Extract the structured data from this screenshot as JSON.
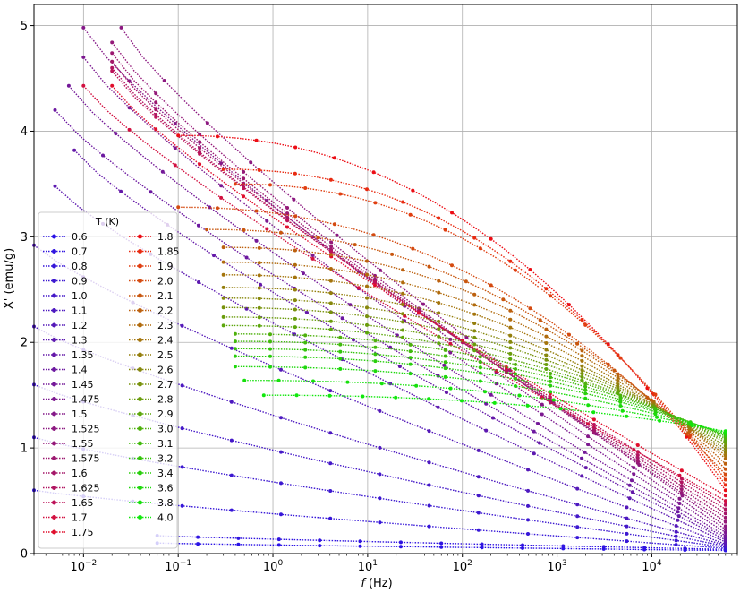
{
  "chart_data": {
    "type": "line",
    "xscale": "log",
    "xlabel_italic": "f",
    "xlabel_unit": "(Hz)",
    "ylabel": "X' (emu/g)",
    "xlim": [
      0.003,
      80000
    ],
    "ylim": [
      0,
      5.2
    ],
    "grid": true,
    "legend": {
      "title": "T (K)",
      "placement": "lower-left",
      "columns": 2
    },
    "x_ticks": [
      {
        "value": 0.01,
        "base": "10",
        "exp": "−2"
      },
      {
        "value": 0.1,
        "base": "10",
        "exp": "−1"
      },
      {
        "value": 1,
        "base": "10",
        "exp": "0"
      },
      {
        "value": 10,
        "base": "10",
        "exp": "1"
      },
      {
        "value": 100,
        "base": "10",
        "exp": "2"
      },
      {
        "value": 1000,
        "base": "10",
        "exp": "3"
      },
      {
        "value": 10000,
        "base": "10",
        "exp": "4"
      }
    ],
    "y_ticks": [
      "0",
      "1",
      "2",
      "3",
      "4",
      "5"
    ],
    "series": [
      {
        "name": "0.6",
        "color": "#2a12e6",
        "f_min": 0.06,
        "x_start": 0.06,
        "y_start": 0.1,
        "y_end": 0.03
      },
      {
        "name": "0.7",
        "color": "#3014e0",
        "f_min": 0.06,
        "x_start": 0.06,
        "y_start": 0.17,
        "y_end": 0.04
      },
      {
        "name": "0.8",
        "color": "#3616d8",
        "f_min": 0.003,
        "x_start": 0.003,
        "y_start": 0.6,
        "y_end": 0.05
      },
      {
        "name": "0.9",
        "color": "#3c18d0",
        "f_min": 0.003,
        "x_start": 0.003,
        "y_start": 1.1,
        "y_end": 0.06
      },
      {
        "name": "1.0",
        "color": "#4418c8",
        "f_min": 0.003,
        "x_start": 0.003,
        "y_start": 1.6,
        "y_end": 0.07
      },
      {
        "name": "1.1",
        "color": "#4c18c0",
        "f_min": 0.003,
        "x_start": 0.003,
        "y_start": 2.15,
        "y_end": 0.08
      },
      {
        "name": "1.2",
        "color": "#5418b8",
        "f_min": 0.003,
        "x_start": 0.003,
        "y_start": 2.92,
        "y_end": 0.09
      },
      {
        "name": "1.3",
        "color": "#5c18b0",
        "f_min": 0.005,
        "x_start": 0.005,
        "y_start": 3.48,
        "y_end": 0.11
      },
      {
        "name": "1.35",
        "color": "#6418a8",
        "f_min": 0.008,
        "x_start": 0.008,
        "y_start": 3.82,
        "y_end": 0.13
      },
      {
        "name": "1.4",
        "color": "#6c18a0",
        "f_min": 0.005,
        "x_start": 0.005,
        "y_start": 4.2,
        "y_end": 0.15
      },
      {
        "name": "1.45",
        "color": "#741898",
        "f_min": 0.007,
        "x_start": 0.007,
        "y_start": 4.43,
        "y_end": 0.17
      },
      {
        "name": "1.475",
        "color": "#7c1890",
        "f_min": 0.01,
        "x_start": 0.01,
        "y_start": 4.7,
        "y_end": 0.2
      },
      {
        "name": "1.5",
        "color": "#841888",
        "f_min": 0.01,
        "x_start": 0.01,
        "y_start": 4.98,
        "y_end": 0.23
      },
      {
        "name": "1.525",
        "color": "#8c1880",
        "f_min": 0.025,
        "x_start": 0.025,
        "y_start": 4.98,
        "y_end": 0.26
      },
      {
        "name": "1.55",
        "color": "#941878",
        "f_min": 0.02,
        "x_start": 0.02,
        "y_start": 4.84,
        "y_end": 0.3
      },
      {
        "name": "1.575",
        "color": "#9c1870",
        "f_min": 0.02,
        "x_start": 0.02,
        "y_start": 4.74,
        "y_end": 0.34
      },
      {
        "name": "1.6",
        "color": "#a41668",
        "f_min": 0.02,
        "x_start": 0.02,
        "y_start": 4.66,
        "y_end": 0.38
      },
      {
        "name": "1.625",
        "color": "#b01460",
        "f_min": 0.02,
        "x_start": 0.02,
        "y_start": 4.6,
        "y_end": 0.42
      },
      {
        "name": "1.65",
        "color": "#bc1258",
        "f_min": 0.02,
        "x_start": 0.02,
        "y_start": 4.57,
        "y_end": 0.46
      },
      {
        "name": "1.7",
        "color": "#d21040",
        "f_min": 0.01,
        "x_start": 0.01,
        "y_start": 4.43,
        "y_end": 0.5
      },
      {
        "name": "1.75",
        "color": "#e00e2c",
        "f_min": 0.02,
        "x_start": 0.02,
        "y_start": 4.43,
        "y_end": 0.55
      },
      {
        "name": "1.8",
        "color": "#ec0c14",
        "f_min": 0.1,
        "x_start": 0.1,
        "y_start": 3.96,
        "y_end": 0.6
      },
      {
        "name": "1.85",
        "color": "#e82a10",
        "f_min": 0.3,
        "x_start": 0.3,
        "y_start": 3.64,
        "y_end": 0.65
      },
      {
        "name": "1.9",
        "color": "#e03e10",
        "f_min": 0.4,
        "x_start": 0.4,
        "y_start": 3.5,
        "y_end": 0.7
      },
      {
        "name": "2.0",
        "color": "#d44a10",
        "f_min": 0.1,
        "x_start": 0.1,
        "y_start": 3.28,
        "y_end": 0.75
      },
      {
        "name": "2.1",
        "color": "#c8560e",
        "f_min": 0.2,
        "x_start": 0.2,
        "y_start": 3.07,
        "y_end": 0.8
      },
      {
        "name": "2.2",
        "color": "#bc600e",
        "f_min": 0.3,
        "x_start": 0.3,
        "y_start": 2.9,
        "y_end": 0.85
      },
      {
        "name": "2.3",
        "color": "#b06a0c",
        "f_min": 0.3,
        "x_start": 0.3,
        "y_start": 2.76,
        "y_end": 0.9
      },
      {
        "name": "2.4",
        "color": "#a4740c",
        "f_min": 0.3,
        "x_start": 0.3,
        "y_start": 2.64,
        "y_end": 0.93
      },
      {
        "name": "2.5",
        "color": "#947e0c",
        "f_min": 0.3,
        "x_start": 0.3,
        "y_start": 2.52,
        "y_end": 0.96
      },
      {
        "name": "2.6",
        "color": "#86880c",
        "f_min": 0.3,
        "x_start": 0.3,
        "y_start": 2.42,
        "y_end": 0.99
      },
      {
        "name": "2.7",
        "color": "#78920c",
        "f_min": 0.3,
        "x_start": 0.3,
        "y_start": 2.33,
        "y_end": 1.02
      },
      {
        "name": "2.8",
        "color": "#6a9c0c",
        "f_min": 0.3,
        "x_start": 0.3,
        "y_start": 2.24,
        "y_end": 1.05
      },
      {
        "name": "2.9",
        "color": "#5ca60c",
        "f_min": 0.3,
        "x_start": 0.3,
        "y_start": 2.16,
        "y_end": 1.07
      },
      {
        "name": "3.0",
        "color": "#4eb00c",
        "f_min": 0.4,
        "x_start": 0.4,
        "y_start": 2.08,
        "y_end": 1.09
      },
      {
        "name": "3.1",
        "color": "#40ba0c",
        "f_min": 0.4,
        "x_start": 0.4,
        "y_start": 2.01,
        "y_end": 1.11
      },
      {
        "name": "3.2",
        "color": "#34c40c",
        "f_min": 0.4,
        "x_start": 0.4,
        "y_start": 1.94,
        "y_end": 1.12
      },
      {
        "name": "3.4",
        "color": "#28ce0c",
        "f_min": 0.4,
        "x_start": 0.4,
        "y_start": 1.87,
        "y_end": 1.13
      },
      {
        "name": "3.6",
        "color": "#1ed80c",
        "f_min": 0.4,
        "x_start": 0.4,
        "y_start": 1.77,
        "y_end": 1.14
      },
      {
        "name": "3.8",
        "color": "#16e00c",
        "f_min": 0.5,
        "x_start": 0.5,
        "y_start": 1.64,
        "y_end": 1.15
      },
      {
        "name": "4.0",
        "color": "#10e80c",
        "f_min": 0.8,
        "x_start": 0.8,
        "y_start": 1.5,
        "y_end": 1.16
      }
    ]
  }
}
